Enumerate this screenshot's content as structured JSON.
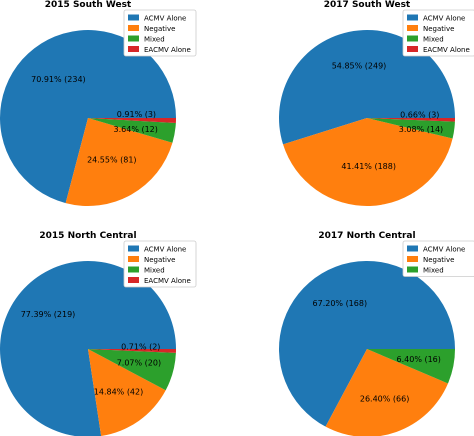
{
  "chart_data": [
    {
      "type": "pie",
      "title": "2015 South West",
      "categories": [
        "ACMV Alone",
        "Negative",
        "Mixed",
        "EACMV Alone"
      ],
      "values": [
        234,
        81,
        12,
        3
      ],
      "labels": [
        "70.91%  (234)",
        "24.55%  (81)",
        "3.64%  (12)",
        "0.91%  (3)"
      ],
      "colors": [
        "#1f77b4",
        "#ff7f0e",
        "#2ca02c",
        "#d62728"
      ],
      "legend": "top-right"
    },
    {
      "type": "pie",
      "title": "2017 South West",
      "categories": [
        "ACMV Alone",
        "Negative",
        "Mixed",
        "EACMV Alone"
      ],
      "values": [
        249,
        188,
        14,
        3
      ],
      "labels": [
        "54.85%  (249)",
        "41.41%  (188)",
        "3.08%  (14)",
        "0.66%  (3)"
      ],
      "colors": [
        "#1f77b4",
        "#ff7f0e",
        "#2ca02c",
        "#d62728"
      ],
      "legend": "top-right"
    },
    {
      "type": "pie",
      "title": "2015 North Central",
      "categories": [
        "ACMV Alone",
        "Negative",
        "Mixed",
        "EACMV Alone"
      ],
      "values": [
        219,
        42,
        20,
        2
      ],
      "labels": [
        "77.39%  (219)",
        "14.84%  (42)",
        "7.07%  (20)",
        "0.71%  (2)"
      ],
      "colors": [
        "#1f77b4",
        "#ff7f0e",
        "#2ca02c",
        "#d62728"
      ],
      "legend": "top-right"
    },
    {
      "type": "pie",
      "title": "2017 North Central",
      "categories": [
        "ACMV Alone",
        "Negative",
        "Mixed"
      ],
      "values": [
        168,
        66,
        16
      ],
      "labels": [
        "67.20%  (168)",
        "26.40%  (66)",
        "6.40%  (16)"
      ],
      "colors": [
        "#1f77b4",
        "#ff7f0e",
        "#2ca02c"
      ],
      "legend": "top-right"
    }
  ]
}
